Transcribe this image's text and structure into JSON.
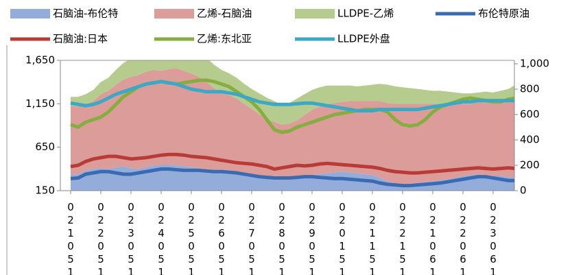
{
  "chart_data": {
    "type": "stacked-area-line",
    "categories": [
      "021051",
      null,
      null,
      null,
      "022051",
      null,
      null,
      null,
      "023051",
      null,
      null,
      null,
      "024051",
      null,
      null,
      null,
      "025051",
      null,
      null,
      null,
      "026051",
      null,
      null,
      null,
      "027051",
      null,
      null,
      null,
      "028051",
      null,
      null,
      null,
      "029051",
      null,
      null,
      null,
      "020151",
      null,
      null,
      null,
      "021151",
      null,
      null,
      null,
      "022151",
      null,
      null,
      null,
      "021061",
      null,
      null,
      null,
      "022061",
      null,
      null,
      null,
      "023061",
      null,
      null,
      null
    ],
    "ylim": [
      150,
      1650
    ],
    "yticks": [
      150,
      650,
      {
        "value": 1150,
        "label": "1,150"
      },
      {
        "value": 1650,
        "label": "1,650"
      }
    ],
    "y2lim": [
      0,
      1027
    ],
    "y2ticks": [
      0,
      200,
      400,
      600,
      800,
      {
        "value": 1000,
        "label": "1,000"
      }
    ],
    "series": [
      {
        "name": "石脑油-布伦特",
        "kind": "area",
        "color": "#94acd9",
        "values": [
          330,
          340,
          380,
          400,
          410,
          400,
          420,
          430,
          410,
          400,
          420,
          440,
          450,
          450,
          440,
          430,
          420,
          410,
          400,
          380,
          380,
          370,
          360,
          350,
          340,
          330,
          320,
          320,
          310,
          300,
          310,
          320,
          330,
          340,
          350,
          360,
          370,
          360,
          350,
          340,
          330,
          300,
          260,
          230,
          220,
          230,
          240,
          250,
          260,
          270,
          280,
          300,
          320,
          330,
          340,
          330,
          320,
          320,
          310,
          300
        ]
      },
      {
        "name": "乙烯-石脑油",
        "kind": "area",
        "color": "#dc9c9a",
        "values": [
          800,
          780,
          760,
          780,
          850,
          900,
          950,
          1000,
          1050,
          1080,
          1100,
          1100,
          1080,
          1100,
          1120,
          1100,
          1080,
          1050,
          1000,
          950,
          900,
          880,
          850,
          800,
          750,
          700,
          650,
          620,
          600,
          620,
          650,
          700,
          750,
          780,
          800,
          800,
          800,
          820,
          830,
          840,
          850,
          880,
          900,
          920,
          930,
          920,
          910,
          900,
          890,
          880,
          870,
          850,
          830,
          820,
          830,
          850,
          860,
          880,
          900,
          950
        ]
      },
      {
        "name": "LLDPE-乙烯",
        "kind": "area",
        "color": "#b5cc8e",
        "values": [
          100,
          110,
          120,
          130,
          140,
          150,
          170,
          190,
          210,
          230,
          250,
          260,
          260,
          250,
          240,
          230,
          240,
          260,
          280,
          270,
          260,
          250,
          240,
          230,
          230,
          240,
          250,
          240,
          230,
          240,
          250,
          240,
          230,
          220,
          210,
          200,
          190,
          180,
          170,
          180,
          190,
          200,
          210,
          200,
          190,
          180,
          170,
          160,
          150,
          150,
          140,
          130,
          120,
          120,
          110,
          110,
          100,
          100,
          110,
          120
        ]
      },
      {
        "name": "布伦特原油",
        "kind": "line",
        "axis": "y2",
        "color": "#3a6bb0",
        "values": [
          95,
          100,
          130,
          140,
          150,
          150,
          140,
          130,
          130,
          140,
          150,
          160,
          170,
          170,
          165,
          160,
          160,
          160,
          155,
          150,
          150,
          145,
          140,
          130,
          120,
          110,
          105,
          100,
          100,
          100,
          105,
          110,
          110,
          105,
          100,
          95,
          95,
          90,
          85,
          80,
          75,
          60,
          50,
          45,
          40,
          40,
          45,
          50,
          55,
          60,
          70,
          80,
          90,
          100,
          110,
          110,
          100,
          90,
          80,
          80
        ]
      },
      {
        "name": "石脑油:日本",
        "kind": "line",
        "axis": "y2",
        "color": "#b93b37",
        "values": [
          190,
          200,
          230,
          250,
          260,
          270,
          270,
          260,
          250,
          255,
          260,
          270,
          280,
          285,
          285,
          280,
          270,
          265,
          260,
          250,
          240,
          230,
          220,
          215,
          210,
          200,
          190,
          170,
          180,
          190,
          200,
          195,
          200,
          210,
          215,
          210,
          205,
          200,
          195,
          190,
          185,
          175,
          160,
          150,
          145,
          140,
          140,
          145,
          150,
          155,
          160,
          165,
          170,
          175,
          180,
          175,
          170,
          175,
          180,
          175
        ]
      },
      {
        "name": "乙烯:东北亚",
        "kind": "line",
        "axis": "y2",
        "color": "#86ad3f",
        "values": [
          520,
          500,
          540,
          560,
          580,
          620,
          680,
          740,
          780,
          820,
          840,
          850,
          860,
          850,
          840,
          850,
          860,
          870,
          870,
          860,
          840,
          820,
          780,
          740,
          700,
          640,
          560,
          480,
          460,
          470,
          500,
          520,
          540,
          560,
          580,
          600,
          610,
          620,
          630,
          640,
          640,
          640,
          620,
          560,
          520,
          510,
          520,
          560,
          620,
          660,
          680,
          700,
          720,
          730,
          720,
          710,
          700,
          700,
          720,
          730
        ]
      },
      {
        "name": "LLDPE外盘",
        "kind": "line",
        "axis": "y2",
        "color": "#3ba8c5",
        "values": [
          690,
          680,
          670,
          680,
          700,
          730,
          760,
          780,
          800,
          820,
          840,
          850,
          860,
          850,
          840,
          820,
          800,
          790,
          780,
          780,
          780,
          770,
          760,
          740,
          720,
          700,
          690,
          680,
          680,
          680,
          685,
          690,
          690,
          680,
          670,
          660,
          650,
          640,
          630,
          630,
          630,
          640,
          640,
          640,
          640,
          640,
          640,
          650,
          660,
          670,
          680,
          690,
          700,
          700,
          710,
          710,
          710,
          710,
          710,
          710
        ]
      }
    ],
    "grid": false
  }
}
